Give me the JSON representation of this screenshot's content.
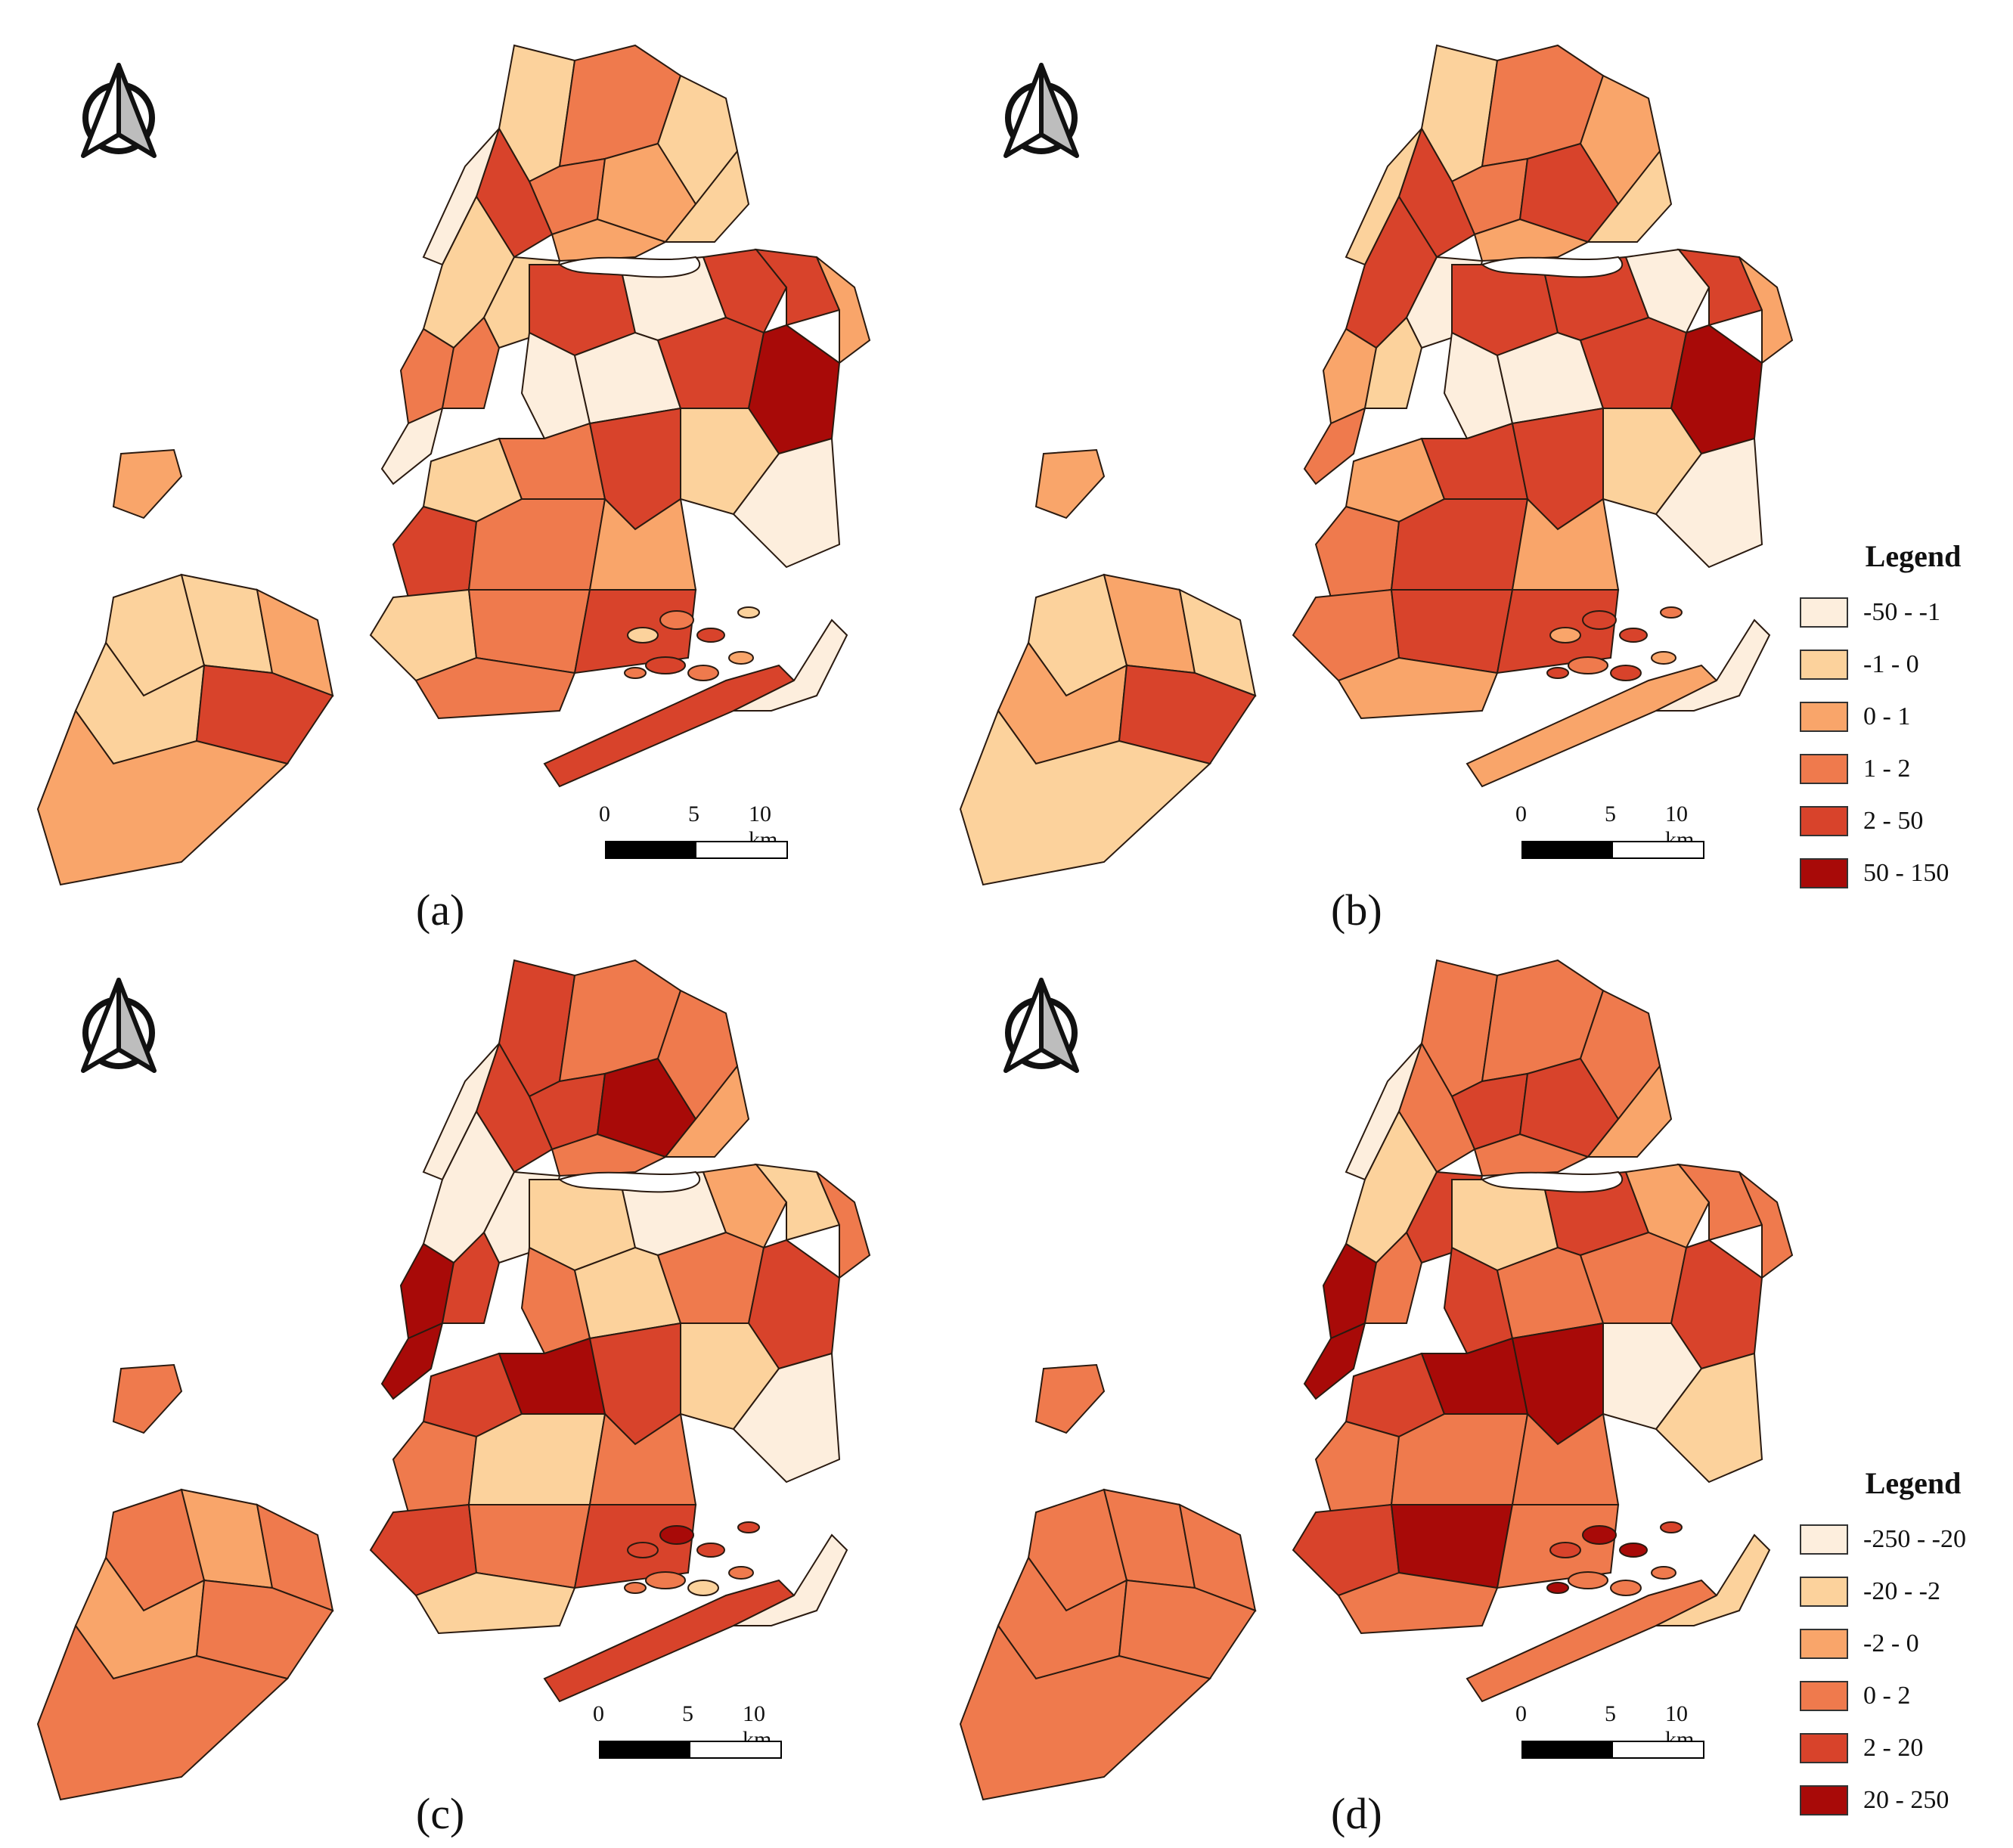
{
  "panels": [
    {
      "id": "a",
      "caption": "(a)",
      "scheme": "top"
    },
    {
      "id": "b",
      "caption": "(b)",
      "scheme": "top"
    },
    {
      "id": "c",
      "caption": "(c)",
      "scheme": "bottom"
    },
    {
      "id": "d",
      "caption": "(d)",
      "scheme": "bottom"
    }
  ],
  "scale_bar": {
    "ticks": [
      "0",
      "5",
      "10 km"
    ]
  },
  "legends": {
    "top": {
      "title": "Legend",
      "classes": [
        {
          "label": "-50 - -1",
          "color": "#fdeedd"
        },
        {
          "label": "-1 - 0",
          "color": "#fcd29c"
        },
        {
          "label": "0 - 1",
          "color": "#f9a56a"
        },
        {
          "label": "1 - 2",
          "color": "#ef7a4d"
        },
        {
          "label": "2 - 50",
          "color": "#d8432b"
        },
        {
          "label": "50 - 150",
          "color": "#a80a08"
        }
      ]
    },
    "bottom": {
      "title": "Legend",
      "classes": [
        {
          "label": "-250 - -20",
          "color": "#fdeedd"
        },
        {
          "label": "-20 - -2",
          "color": "#fcd29c"
        },
        {
          "label": "-2 - 0",
          "color": "#f9a56a"
        },
        {
          "label": "0 - 2",
          "color": "#ef7a4d"
        },
        {
          "label": "2 - 20",
          "color": "#d8432b"
        },
        {
          "label": "20 - 250",
          "color": "#a80a08"
        }
      ]
    }
  },
  "colors": {
    "boundary": "#2a1a10",
    "water": "#ffffff"
  },
  "map_fills": {
    "a": {
      "bronx": [
        1,
        3,
        1,
        3,
        2,
        4,
        1,
        2
      ],
      "manhattan": [
        0,
        1,
        3,
        0,
        1,
        3
      ],
      "queens": [
        4,
        0,
        4,
        4,
        2,
        0,
        0,
        4,
        5,
        1,
        0
      ],
      "brooklyn": [
        1,
        3,
        4,
        4,
        3,
        2,
        1,
        3,
        4,
        3
      ],
      "staten": [
        1,
        1,
        2,
        1,
        4,
        2
      ],
      "rockaway": [
        4,
        0
      ],
      "hook": 2
    },
    "b": {
      "bronx": [
        1,
        3,
        2,
        3,
        4,
        4,
        1,
        2
      ],
      "manhattan": [
        1,
        4,
        2,
        3,
        0,
        1
      ],
      "queens": [
        4,
        4,
        0,
        4,
        2,
        0,
        0,
        4,
        5,
        1,
        0
      ],
      "brooklyn": [
        2,
        4,
        4,
        3,
        4,
        2,
        3,
        4,
        4,
        2
      ],
      "staten": [
        1,
        2,
        1,
        2,
        4,
        1
      ],
      "rockaway": [
        2,
        0
      ],
      "hook": 2
    },
    "c": {
      "bronx": [
        4,
        3,
        3,
        4,
        5,
        4,
        2,
        3
      ],
      "manhattan": [
        0,
        0,
        5,
        5,
        0,
        4
      ],
      "queens": [
        1,
        0,
        2,
        1,
        3,
        3,
        1,
        3,
        4,
        1,
        0
      ],
      "brooklyn": [
        4,
        5,
        4,
        3,
        1,
        3,
        4,
        3,
        4,
        1
      ],
      "staten": [
        3,
        2,
        3,
        2,
        3,
        3
      ],
      "rockaway": [
        4,
        0
      ],
      "hook": 3
    },
    "d": {
      "bronx": [
        3,
        3,
        3,
        4,
        4,
        3,
        2,
        3
      ],
      "manhattan": [
        0,
        1,
        5,
        5,
        4,
        3
      ],
      "queens": [
        1,
        4,
        2,
        3,
        3,
        4,
        3,
        3,
        4,
        0,
        1
      ],
      "brooklyn": [
        4,
        5,
        5,
        3,
        3,
        3,
        4,
        5,
        3,
        3
      ],
      "staten": [
        3,
        3,
        3,
        3,
        3,
        3
      ],
      "rockaway": [
        3,
        1
      ],
      "hook": 3
    }
  }
}
